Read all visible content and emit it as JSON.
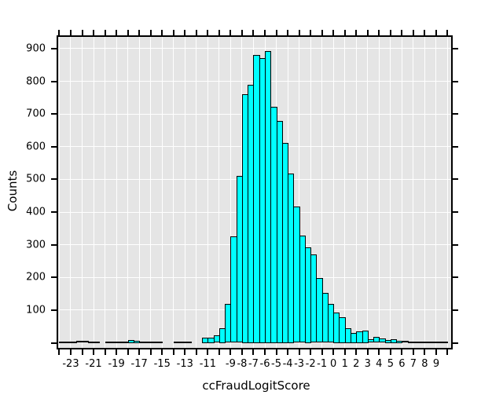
{
  "chart_data": {
    "type": "histogram",
    "title": "",
    "xlabel": "ccFraudLogitScore",
    "ylabel": "Counts",
    "x_range": [
      -24.1,
      10.31
    ],
    "y_range": [
      -15.6,
      936
    ],
    "bins": {
      "start": -24,
      "width": 0.5,
      "counts": [
        2,
        2,
        2,
        6,
        6,
        2,
        2,
        0,
        2,
        2,
        2,
        2,
        8,
        5,
        2,
        3,
        4,
        4,
        0,
        0,
        2,
        1,
        1,
        0,
        0,
        15,
        16,
        22,
        45,
        118,
        325,
        510,
        760,
        790,
        880,
        872,
        893,
        721,
        680,
        612,
        517,
        418,
        328,
        291,
        271,
        199,
        153,
        118,
        92,
        78,
        45,
        29,
        35,
        38,
        11,
        17,
        14,
        8,
        10,
        5,
        6,
        2,
        3,
        2,
        1,
        1,
        1,
        1
      ]
    },
    "x_ticks": {
      "from": -24,
      "to": 10,
      "step": 1
    },
    "x_tick_label_values": [
      -23,
      -21,
      -19,
      -17,
      -15,
      -13,
      -11,
      -9,
      -8,
      -7,
      -6,
      -5,
      -4,
      -3,
      -2,
      -1,
      0,
      1,
      2,
      3,
      4,
      5,
      6,
      7,
      8,
      9
    ],
    "y_tick_values": [
      0,
      100,
      200,
      300,
      400,
      500,
      600,
      700,
      800,
      900
    ],
    "y_tick_label_values": [
      100,
      200,
      300,
      400,
      500,
      600,
      700,
      800,
      900
    ],
    "grid": {
      "x_step": 1,
      "y_step": 100
    },
    "legend_position": "none",
    "colors": {
      "bar_fill": "#00FFFF",
      "bar_stroke": "#000000",
      "plot_bg": "#E5E5E5",
      "grid": "#FFFFFF",
      "axis": "#000000",
      "text": "#000000"
    }
  }
}
